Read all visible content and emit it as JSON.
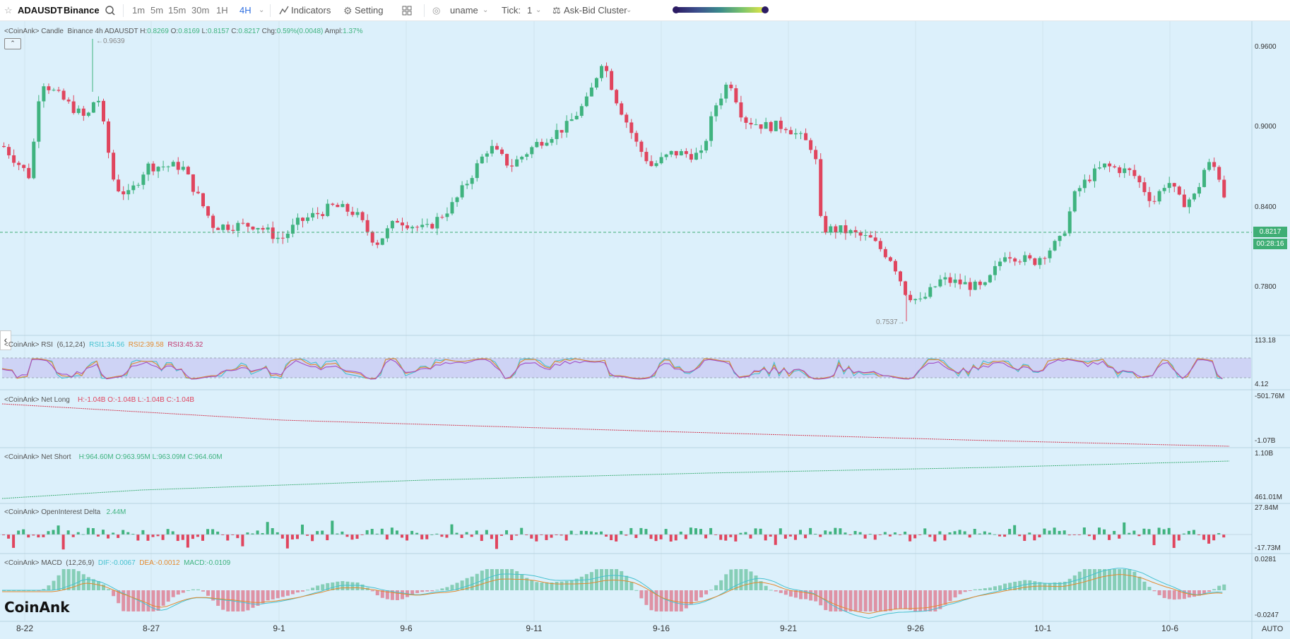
{
  "toolbar": {
    "symbol": "ADAUSDT",
    "exchange": "Binance",
    "intervals": [
      "1m",
      "5m",
      "15m",
      "30m",
      "1H",
      "4H"
    ],
    "active_interval": "4H",
    "indicators_label": "Indicators",
    "setting_label": "Setting",
    "user": "uname",
    "tick_label": "Tick:",
    "tick_value": "1",
    "cluster_label": "Ask-Bid Cluster",
    "gradient_colors": [
      "#2b1b63",
      "#3c4f8d",
      "#3a8a8b",
      "#7cc46a",
      "#e7e645"
    ]
  },
  "candle_panel": {
    "prefix": "<CoinAnk>",
    "name": "Candle",
    "exchange": "Binance",
    "interval": "4h",
    "symbol": "ADAUSDT",
    "h_label": "H:",
    "h": "0.8269",
    "o_label": "O:",
    "o": "0.8169",
    "l_label": "L:",
    "l": "0.8157",
    "c_label": "C:",
    "c": "0.8217",
    "chg_label": "Chg:",
    "chg": "0.59%(0.0048)",
    "amp_label": "Ampl:",
    "amp": "1.37%",
    "high_marker": "0.9639",
    "low_marker": "0.7537",
    "y_ticks": [
      "0.9600",
      "0.9000",
      "0.8400",
      "0.7800"
    ],
    "last_price": "0.8217",
    "countdown": "00:28:16"
  },
  "rsi_panel": {
    "prefix": "<CoinAnk>",
    "name": "RSI",
    "params": "(6,12,24)",
    "rsi1": "RSI1:34.56",
    "rsi2": "RSI2:39.58",
    "rsi3": "RSI3:45.32",
    "top": "113.18",
    "bottom": "4.12"
  },
  "net_long_panel": {
    "prefix": "<CoinAnk>",
    "name": "Net Long",
    "h": "H:-1.04B",
    "o": "O:-1.04B",
    "l": "L:-1.04B",
    "c": "C:-1.04B",
    "top": "-501.76M",
    "bottom": "-1.07B"
  },
  "net_short_panel": {
    "prefix": "<CoinAnk>",
    "name": "Net Short",
    "h": "H:964.60M",
    "o": "O:963.95M",
    "l": "L:963.09M",
    "c": "C:964.60M",
    "top": "1.10B",
    "bottom": "461.01M"
  },
  "oi_panel": {
    "prefix": "<CoinAnk>",
    "name": "OpenInterest Delta",
    "value": "2.44M",
    "top": "27.84M",
    "bottom": "-17.73M"
  },
  "macd_panel": {
    "prefix": "<CoinAnk>",
    "name": "MACD",
    "params": "(12,26,9)",
    "dif": "DIF:-0.0067",
    "dea": "DEA:-0.0012",
    "macd": "MACD:-0.0109",
    "top": "0.0281",
    "bottom": "-0.0247"
  },
  "x_axis": [
    "8-22",
    "8-27",
    "9-1",
    "9-6",
    "9-11",
    "9-16",
    "9-21",
    "9-26",
    "10-1",
    "10-6"
  ],
  "brand": "CoinAnk",
  "auto_label": "AUTO",
  "colors": {
    "up": "#3fb37f",
    "down": "#e0455e",
    "bg": "#dcf0fb",
    "accent": "#2f6fe0"
  }
}
